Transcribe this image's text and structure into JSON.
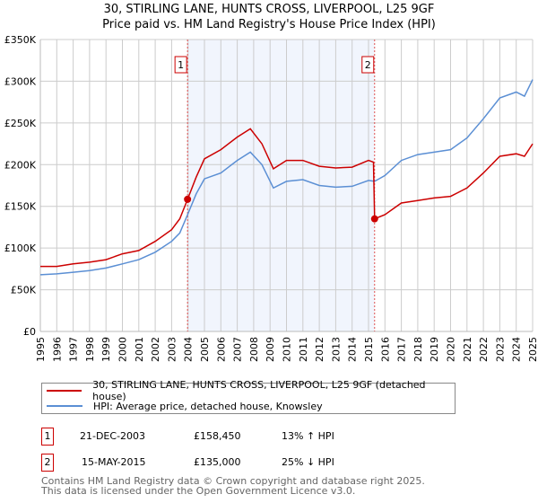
{
  "title": "30, STIRLING LANE, HUNTS CROSS, LIVERPOOL, L25 9GF",
  "subtitle": "Price paid vs. HM Land Registry's House Price Index (HPI)",
  "chart_data": {
    "type": "line",
    "title": "30, STIRLING LANE, HUNTS CROSS, LIVERPOOL, L25 9GF",
    "subtitle": "Price paid vs. HM Land Registry's House Price Index (HPI)",
    "xlim": [
      1995,
      2025
    ],
    "ylim": [
      0,
      350000
    ],
    "grid": true,
    "y_ticks": [
      0,
      50000,
      100000,
      150000,
      200000,
      250000,
      300000,
      350000
    ],
    "y_tick_labels": [
      "£0",
      "£50K",
      "£100K",
      "£150K",
      "£200K",
      "£250K",
      "£300K",
      "£350K"
    ],
    "x_ticks": [
      "1995",
      "1996",
      "1997",
      "1998",
      "1999",
      "2000",
      "2001",
      "2002",
      "2003",
      "2004",
      "2005",
      "2006",
      "2007",
      "2008",
      "2009",
      "2010",
      "2011",
      "2012",
      "2013",
      "2014",
      "2015",
      "2016",
      "2017",
      "2018",
      "2019",
      "2020",
      "2021",
      "2022",
      "2023",
      "2024",
      "2025"
    ],
    "shaded_range": [
      2003.97,
      2015.37
    ],
    "series": [
      {
        "name": "30, STIRLING LANE, HUNTS CROSS, LIVERPOOL, L25 9GF (detached house)",
        "color": "#cc0000",
        "x": [
          1995,
          1996,
          1997,
          1998,
          1999,
          2000,
          2001,
          2002,
          2003,
          2003.5,
          2003.97,
          2004.5,
          2005,
          2006,
          2007,
          2007.8,
          2008.5,
          2009.2,
          2010,
          2011,
          2012,
          2013,
          2014,
          2015,
          2015.3,
          2015.37,
          2016,
          2017,
          2018,
          2019,
          2020,
          2021,
          2022,
          2023,
          2024,
          2024.5,
          2025
        ],
        "y": [
          78000,
          78000,
          81000,
          83000,
          86000,
          93000,
          97000,
          108000,
          122000,
          135000,
          158450,
          185000,
          207000,
          218000,
          233000,
          243000,
          225000,
          195000,
          205000,
          205000,
          198000,
          196000,
          197000,
          205000,
          203000,
          135000,
          140000,
          154000,
          157000,
          160000,
          162000,
          172000,
          190000,
          210000,
          213000,
          210000,
          225000
        ]
      },
      {
        "name": "HPI: Average price, detached house, Knowsley",
        "color": "#5b8fd4",
        "x": [
          1995,
          1996,
          1997,
          1998,
          1999,
          2000,
          2001,
          2002,
          2003,
          2003.5,
          2003.97,
          2004.5,
          2005,
          2006,
          2007,
          2007.8,
          2008.5,
          2009.2,
          2010,
          2011,
          2012,
          2013,
          2014,
          2015,
          2015.37,
          2016,
          2017,
          2018,
          2019,
          2020,
          2021,
          2022,
          2023,
          2024,
          2024.5,
          2025
        ],
        "y": [
          68000,
          69000,
          71000,
          73000,
          76000,
          81000,
          86000,
          95000,
          108000,
          118000,
          140000,
          165000,
          183000,
          190000,
          205000,
          215000,
          200000,
          172000,
          180000,
          182000,
          175000,
          173000,
          174000,
          181000,
          180000,
          187000,
          205000,
          212000,
          215000,
          218000,
          232000,
          255000,
          280000,
          287000,
          282000,
          302000
        ]
      }
    ],
    "annotations": [
      {
        "label": "1",
        "x": 2003.97,
        "y": 158450
      },
      {
        "label": "2",
        "x": 2015.37,
        "y": 135000
      }
    ],
    "legend_placement": "below"
  },
  "legend": {
    "property": "30, STIRLING LANE, HUNTS CROSS, LIVERPOOL, L25 9GF (detached house)",
    "hpi": "HPI: Average price, detached house, Knowsley"
  },
  "sales": [
    {
      "num": "1",
      "date": "21-DEC-2003",
      "price": "£158,450",
      "hpi": "13% ↑ HPI"
    },
    {
      "num": "2",
      "date": "15-MAY-2015",
      "price": "£135,000",
      "hpi": "25% ↓ HPI"
    }
  ],
  "footer": {
    "line1": "Contains HM Land Registry data © Crown copyright and database right 2025.",
    "line2": "This data is licensed under the Open Government Licence v3.0."
  }
}
